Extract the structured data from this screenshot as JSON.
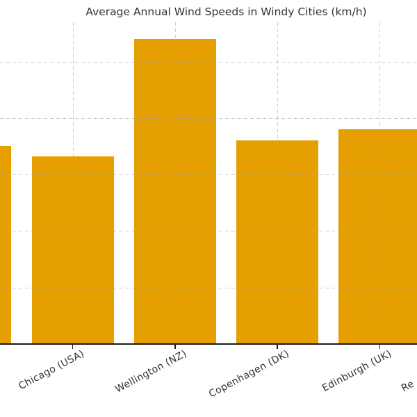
{
  "title": "Average Annual Wind Speeds in Windy Cities (km/h)",
  "chart_data": {
    "type": "bar",
    "title": "Average Annual Wind Speeds in Windy Cities (km/h)",
    "unit": "km/h",
    "bars": [
      {
        "label": "",
        "value": 17.5,
        "note": "bar clipped by left edge of image, label not visible"
      },
      {
        "label": "Chicago (USA)",
        "value": 16.6
      },
      {
        "label": "Wellington (NZ)",
        "value": 27.0
      },
      {
        "label": "Copenhagen (DK)",
        "value": 18.0
      },
      {
        "label": "Edinburgh (UK)",
        "value": 19.0
      },
      {
        "label": "Re",
        "value": null,
        "note": "only label fragment visible at bottom-right corner, bar outside image"
      }
    ],
    "xlabel": "",
    "ylabel": "",
    "ylim": [
      0,
      28.4
    ],
    "y_gridline_interval": 5,
    "grid_style": "dashed",
    "grid_over_bars": true,
    "legend": null,
    "colors": {
      "bar": "#E69F00",
      "grid": "#AAAAAA",
      "axis": "#1A1A1A",
      "text": "#333333"
    }
  }
}
